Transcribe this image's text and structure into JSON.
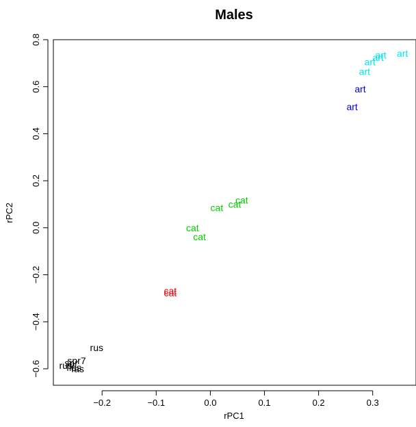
{
  "chart_data": {
    "type": "scatter",
    "title": "Males",
    "xlabel": "rPC1",
    "ylabel": "rPC2",
    "xlim": [
      -0.29,
      0.38
    ],
    "ylim": [
      -0.67,
      0.8
    ],
    "xticks": [
      -0.2,
      -0.1,
      0.0,
      0.1,
      0.2,
      0.3
    ],
    "xtick_labels": [
      "−0.2",
      "−0.1",
      "0.0",
      "0.1",
      "0.2",
      "0.3"
    ],
    "yticks": [
      -0.6,
      -0.4,
      -0.2,
      0.0,
      0.2,
      0.4,
      0.6,
      0.8
    ],
    "ytick_labels": [
      "−0.6",
      "−0.4",
      "−0.2",
      "0.0",
      "0.2",
      "0.4",
      "0.6",
      "0.8"
    ],
    "grid": false,
    "points": [
      {
        "x": 0.355,
        "y": 0.742,
        "label": "art",
        "color": "#00e5ee"
      },
      {
        "x": 0.315,
        "y": 0.735,
        "label": "art",
        "color": "#00e5ee"
      },
      {
        "x": 0.31,
        "y": 0.725,
        "label": "art",
        "color": "#00e5ee"
      },
      {
        "x": 0.295,
        "y": 0.705,
        "label": "art",
        "color": "#00e5ee"
      },
      {
        "x": 0.285,
        "y": 0.665,
        "label": "art",
        "color": "#00e5ee"
      },
      {
        "x": 0.277,
        "y": 0.59,
        "label": "art",
        "color": "#0000cd"
      },
      {
        "x": 0.262,
        "y": 0.515,
        "label": "art",
        "color": "#0000cd"
      },
      {
        "x": 0.058,
        "y": 0.118,
        "label": "cat",
        "color": "#00cd00"
      },
      {
        "x": 0.045,
        "y": 0.1,
        "label": "cat",
        "color": "#00cd00"
      },
      {
        "x": 0.012,
        "y": 0.085,
        "label": "cat",
        "color": "#00cd00"
      },
      {
        "x": -0.033,
        "y": 0.0,
        "label": "cat",
        "color": "#00cd00"
      },
      {
        "x": -0.02,
        "y": -0.038,
        "label": "cat",
        "color": "#00cd00"
      },
      {
        "x": -0.074,
        "y": -0.268,
        "label": "cat",
        "color": "#ee0000"
      },
      {
        "x": -0.074,
        "y": -0.277,
        "label": "cat",
        "color": "#ee0000"
      },
      {
        "x": -0.21,
        "y": -0.51,
        "label": "rus",
        "color": "#000000"
      },
      {
        "x": -0.247,
        "y": -0.565,
        "label": "spr7",
        "color": "#000000"
      },
      {
        "x": -0.257,
        "y": -0.575,
        "label": "spr",
        "color": "#000000"
      },
      {
        "x": -0.267,
        "y": -0.585,
        "label": "rus",
        "color": "#000000"
      },
      {
        "x": -0.252,
        "y": -0.595,
        "label": "flas",
        "color": "#000000"
      },
      {
        "x": -0.245,
        "y": -0.6,
        "label": "fas",
        "color": "#000000"
      }
    ]
  }
}
